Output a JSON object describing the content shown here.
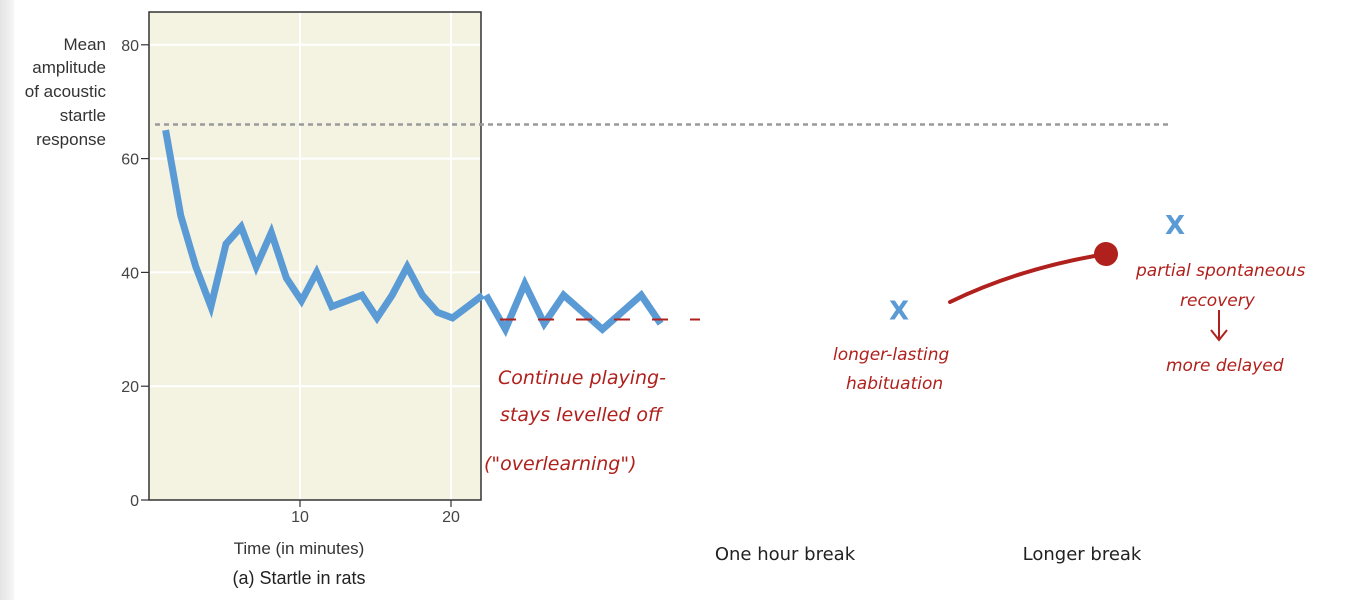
{
  "chart_data": {
    "type": "line",
    "title": "(a) Startle in rats",
    "xlabel": "Time (in minutes)",
    "ylabel_lines": [
      "Mean",
      "amplitude",
      "of acoustic",
      "startle",
      "response"
    ],
    "xlim": [
      0,
      22
    ],
    "ylim": [
      0,
      85
    ],
    "x_ticks": [
      10,
      20
    ],
    "y_ticks": [
      0,
      20,
      40,
      60,
      80
    ],
    "grid": true,
    "series": [
      {
        "x": [
          1,
          2,
          3,
          4,
          5,
          6,
          7,
          8,
          9,
          10,
          11,
          12,
          13,
          14,
          15,
          16,
          17,
          18,
          19,
          20,
          21,
          22
        ],
        "values": [
          65,
          50,
          41,
          34,
          45,
          48,
          41,
          47,
          39,
          35,
          40,
          34,
          35,
          36,
          32,
          36,
          41,
          36,
          33,
          32,
          34,
          36
        ]
      }
    ],
    "continuation_values": [
      36,
      30,
      38,
      31,
      36,
      33,
      30,
      33,
      36,
      31
    ],
    "reference_level": 66,
    "dash_level": 27.5,
    "marks": [
      {
        "label": "X",
        "after": "One hour break",
        "value": 33.5
      },
      {
        "label": "X",
        "after": "Longer break",
        "value": 48.5
      }
    ]
  },
  "annotations": {
    "continue": [
      "Continue playing-",
      "stays levelled off",
      "(\"overlearning\")"
    ],
    "hour": [
      "longer-lasting",
      "habituation"
    ],
    "longer": [
      "partial spontaneous",
      "recovery",
      "more delayed"
    ],
    "breaks": [
      "One hour break",
      "Longer break"
    ],
    "colors": {
      "line": "#5b9bd5",
      "ink": "#b0211d",
      "panel": "#f4f2e1",
      "reference": "#9a9a9a"
    }
  }
}
